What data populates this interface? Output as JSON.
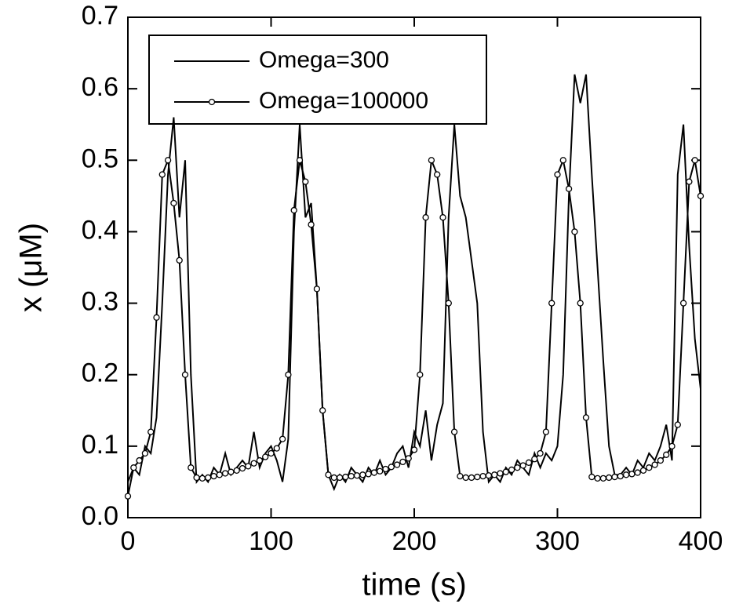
{
  "chart_data": {
    "type": "line",
    "xlabel": "time (s)",
    "ylabel": "x (μM)",
    "x": [
      0,
      4,
      8,
      12,
      16,
      20,
      24,
      28,
      32,
      36,
      40,
      44,
      48,
      52,
      56,
      60,
      64,
      68,
      72,
      76,
      80,
      84,
      88,
      92,
      96,
      100,
      104,
      108,
      112,
      116,
      120,
      124,
      128,
      132,
      136,
      140,
      144,
      148,
      152,
      156,
      160,
      164,
      168,
      172,
      176,
      180,
      184,
      188,
      192,
      196,
      200,
      204,
      208,
      212,
      216,
      220,
      224,
      228,
      232,
      236,
      240,
      244,
      248,
      252,
      256,
      260,
      264,
      268,
      272,
      276,
      280,
      284,
      288,
      292,
      296,
      300,
      304,
      308,
      312,
      316,
      320,
      324,
      328,
      332,
      336,
      340,
      344,
      348,
      352,
      356,
      360,
      364,
      368,
      372,
      376,
      380,
      384,
      388,
      392,
      396,
      400
    ],
    "series": [
      {
        "name": "Omega=300",
        "color": "#000000",
        "marker": "none",
        "values": [
          0.05,
          0.07,
          0.06,
          0.1,
          0.09,
          0.14,
          0.3,
          0.48,
          0.56,
          0.42,
          0.5,
          0.2,
          0.05,
          0.06,
          0.05,
          0.07,
          0.06,
          0.09,
          0.06,
          0.07,
          0.08,
          0.07,
          0.12,
          0.07,
          0.09,
          0.1,
          0.08,
          0.05,
          0.11,
          0.4,
          0.55,
          0.42,
          0.44,
          0.32,
          0.15,
          0.06,
          0.04,
          0.06,
          0.05,
          0.07,
          0.06,
          0.05,
          0.07,
          0.06,
          0.08,
          0.06,
          0.07,
          0.09,
          0.1,
          0.07,
          0.12,
          0.1,
          0.15,
          0.08,
          0.13,
          0.16,
          0.42,
          0.55,
          0.45,
          0.42,
          0.36,
          0.3,
          0.12,
          0.05,
          0.06,
          0.05,
          0.07,
          0.06,
          0.08,
          0.07,
          0.06,
          0.09,
          0.07,
          0.09,
          0.08,
          0.1,
          0.2,
          0.45,
          0.62,
          0.58,
          0.62,
          0.48,
          0.35,
          0.22,
          0.1,
          0.06,
          0.06,
          0.07,
          0.06,
          0.08,
          0.07,
          0.09,
          0.08,
          0.1,
          0.13,
          0.08,
          0.48,
          0.55,
          0.38,
          0.25,
          0.18
        ]
      },
      {
        "name": "Omega=100000",
        "color": "#000000",
        "marker": "circle",
        "values": [
          0.03,
          0.07,
          0.08,
          0.09,
          0.12,
          0.28,
          0.48,
          0.5,
          0.44,
          0.36,
          0.2,
          0.07,
          0.056,
          0.055,
          0.056,
          0.058,
          0.06,
          0.062,
          0.064,
          0.066,
          0.069,
          0.072,
          0.076,
          0.08,
          0.085,
          0.09,
          0.097,
          0.11,
          0.2,
          0.43,
          0.5,
          0.47,
          0.41,
          0.32,
          0.15,
          0.06,
          0.056,
          0.056,
          0.057,
          0.058,
          0.059,
          0.06,
          0.061,
          0.063,
          0.065,
          0.068,
          0.071,
          0.074,
          0.078,
          0.083,
          0.095,
          0.2,
          0.42,
          0.5,
          0.48,
          0.42,
          0.3,
          0.12,
          0.058,
          0.056,
          0.056,
          0.057,
          0.058,
          0.059,
          0.06,
          0.062,
          0.064,
          0.067,
          0.07,
          0.073,
          0.077,
          0.082,
          0.09,
          0.12,
          0.3,
          0.48,
          0.5,
          0.46,
          0.4,
          0.3,
          0.14,
          0.057,
          0.055,
          0.055,
          0.056,
          0.057,
          0.058,
          0.06,
          0.061,
          0.063,
          0.066,
          0.07,
          0.074,
          0.08,
          0.088,
          0.1,
          0.13,
          0.3,
          0.47,
          0.5,
          0.45
        ]
      }
    ],
    "xlim": [
      0,
      400
    ],
    "xticks": [
      0,
      100,
      200,
      300,
      400
    ],
    "ylim": [
      0,
      0.7
    ],
    "yticks": [
      {
        "value": 0,
        "label": "0.0"
      },
      0.1,
      0.2,
      0.3,
      0.4,
      0.5,
      0.6,
      0.7
    ],
    "grid": false,
    "legend": "upper left"
  }
}
